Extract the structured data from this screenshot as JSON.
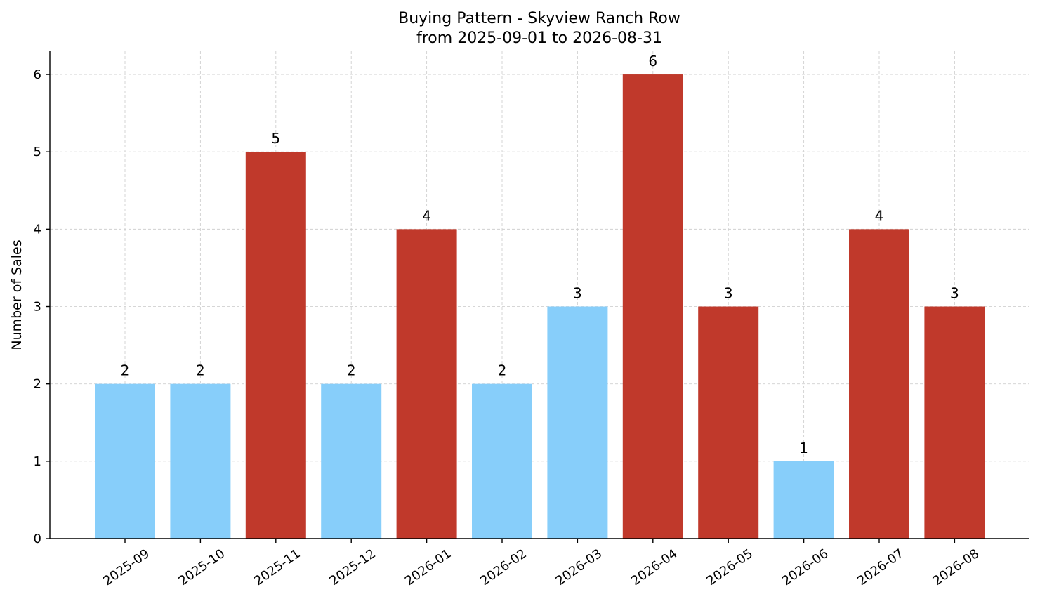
{
  "chart_data": {
    "type": "bar",
    "title": "Buying Pattern - Skyview Ranch Row",
    "subtitle": "from 2025-09-01 to 2026-08-31",
    "xlabel": "",
    "ylabel": "Number of Sales",
    "categories": [
      "2025-09",
      "2025-10",
      "2025-11",
      "2025-12",
      "2026-01",
      "2026-02",
      "2026-03",
      "2026-04",
      "2026-05",
      "2026-06",
      "2026-07",
      "2026-08"
    ],
    "values": [
      2,
      2,
      5,
      2,
      4,
      2,
      3,
      6,
      3,
      1,
      4,
      3
    ],
    "data_labels": [
      "2",
      "2",
      "5",
      "2",
      "4",
      "2",
      "3",
      "6",
      "3",
      "1",
      "4",
      "3"
    ],
    "bar_colors": [
      "#87cefa",
      "#87cefa",
      "#c0392b",
      "#87cefa",
      "#c0392b",
      "#87cefa",
      "#87cefa",
      "#c0392b",
      "#c0392b",
      "#87cefa",
      "#c0392b",
      "#c0392b"
    ],
    "ylim": [
      0,
      6.3
    ],
    "yticks": [
      "0",
      "1",
      "2",
      "3",
      "4",
      "5",
      "6"
    ],
    "grid": true,
    "legend": "none"
  }
}
